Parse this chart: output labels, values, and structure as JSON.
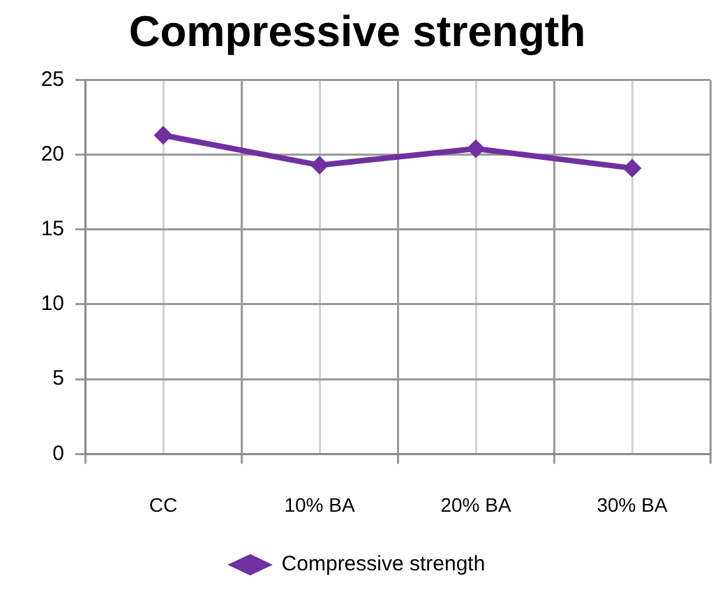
{
  "chart_data": {
    "type": "line",
    "title": "Compressive strength",
    "categories": [
      "CC",
      "10% BA",
      "20% BA",
      "30% BA"
    ],
    "series": [
      {
        "name": "Compressive strength",
        "color": "#7030a0",
        "values": [
          21.3,
          19.3,
          20.4,
          19.1
        ]
      }
    ],
    "ylim": [
      0,
      25
    ],
    "yticks": [
      0,
      5,
      10,
      15,
      20,
      25
    ],
    "grid": true,
    "legend": "bottom",
    "marker": "diamond",
    "line_style": "solid"
  }
}
